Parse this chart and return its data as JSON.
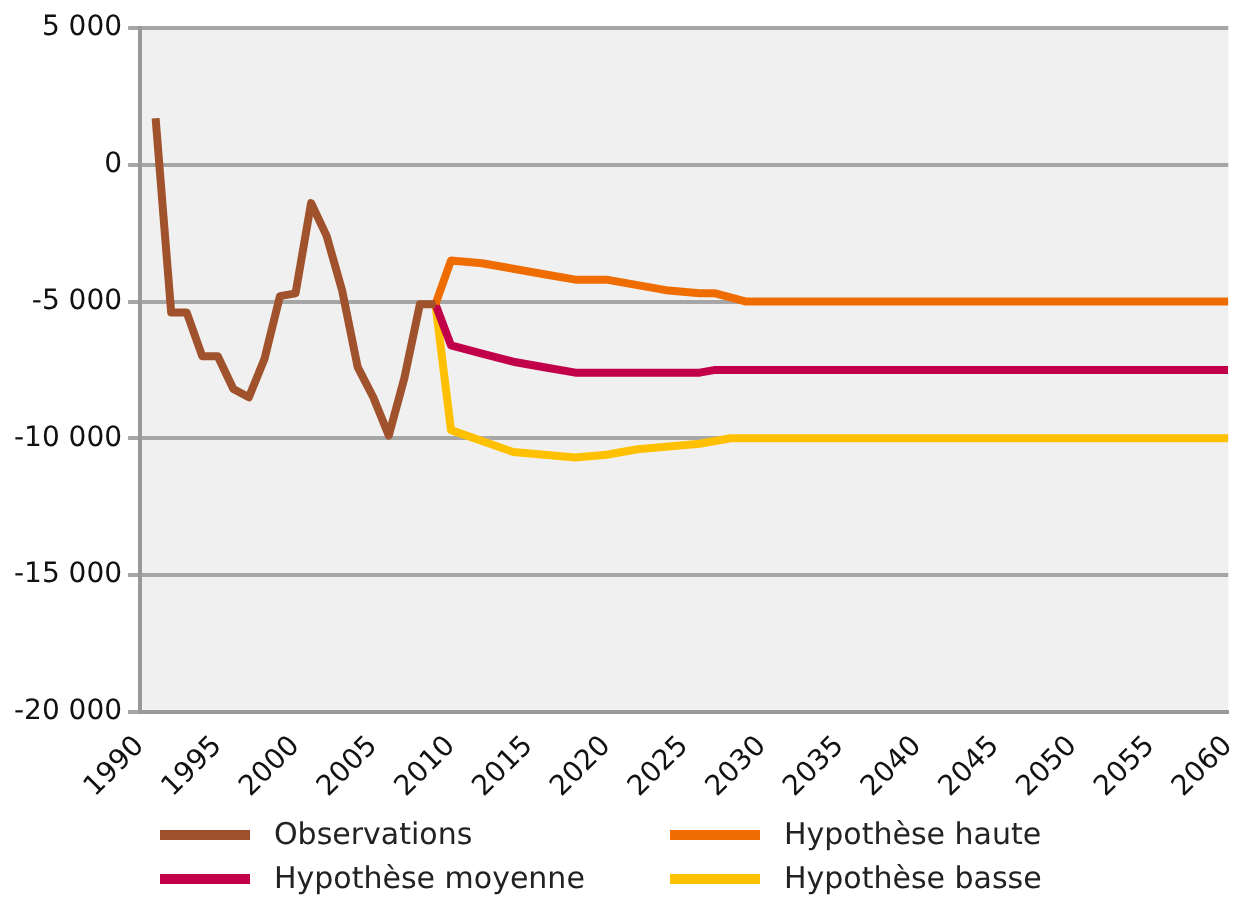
{
  "chart_data": {
    "type": "line",
    "xlim": [
      1990,
      2060
    ],
    "xticks": [
      1990,
      1995,
      2000,
      2005,
      2010,
      2015,
      2020,
      2025,
      2030,
      2035,
      2040,
      2045,
      2050,
      2055,
      2060
    ],
    "ylim": [
      -20000,
      5000
    ],
    "yticks": [
      {
        "value": -20000,
        "label": "-20 000"
      },
      {
        "value": -15000,
        "label": "-15 000"
      },
      {
        "value": -10000,
        "label": "-10 000"
      },
      {
        "value": -5000,
        "label": "-5 000"
      },
      0,
      {
        "value": 5000,
        "label": "5 000"
      }
    ],
    "grid": "y",
    "legend": "bottom",
    "marker": "none",
    "line_style": "solid",
    "series": [
      {
        "name": "Observations",
        "color": "#a0522d",
        "x": [
          1991,
          1992,
          1993,
          1994,
          1995,
          1996,
          1997,
          1998,
          1999,
          2000,
          2001,
          2002,
          2003,
          2004,
          2005,
          2006,
          2007,
          2008,
          2009
        ],
        "values": [
          1700,
          -5400,
          -5400,
          -7000,
          -7000,
          -8200,
          -8500,
          -7100,
          -4800,
          -4700,
          -1400,
          -2600,
          -4600,
          -7400,
          -8500,
          -9900,
          -7800,
          -5100,
          -5100
        ]
      },
      {
        "name": "Hypothèse haute",
        "color": "#ef6c00",
        "x": [
          2009,
          2010,
          2012,
          2014,
          2016,
          2018,
          2020,
          2022,
          2024,
          2026,
          2027,
          2029,
          2060
        ],
        "values": [
          -5100,
          -3500,
          -3600,
          -3800,
          -4000,
          -4200,
          -4200,
          -4400,
          -4600,
          -4700,
          -4700,
          -5000,
          -5000
        ]
      },
      {
        "name": "Hypothèse moyenne",
        "color": "#c2004a",
        "x": [
          2009,
          2010,
          2012,
          2014,
          2016,
          2018,
          2020,
          2022,
          2024,
          2026,
          2027,
          2060
        ],
        "values": [
          -5100,
          -6600,
          -6900,
          -7200,
          -7400,
          -7600,
          -7600,
          -7600,
          -7600,
          -7600,
          -7500,
          -7500
        ]
      },
      {
        "name": "Hypothèse basse",
        "color": "#ffc000",
        "x": [
          2009,
          2010,
          2012,
          2014,
          2016,
          2018,
          2020,
          2022,
          2024,
          2026,
          2028,
          2060
        ],
        "values": [
          -5100,
          -9700,
          -10100,
          -10500,
          -10600,
          -10700,
          -10600,
          -10400,
          -10300,
          -10200,
          -10000,
          -10000
        ]
      }
    ]
  }
}
